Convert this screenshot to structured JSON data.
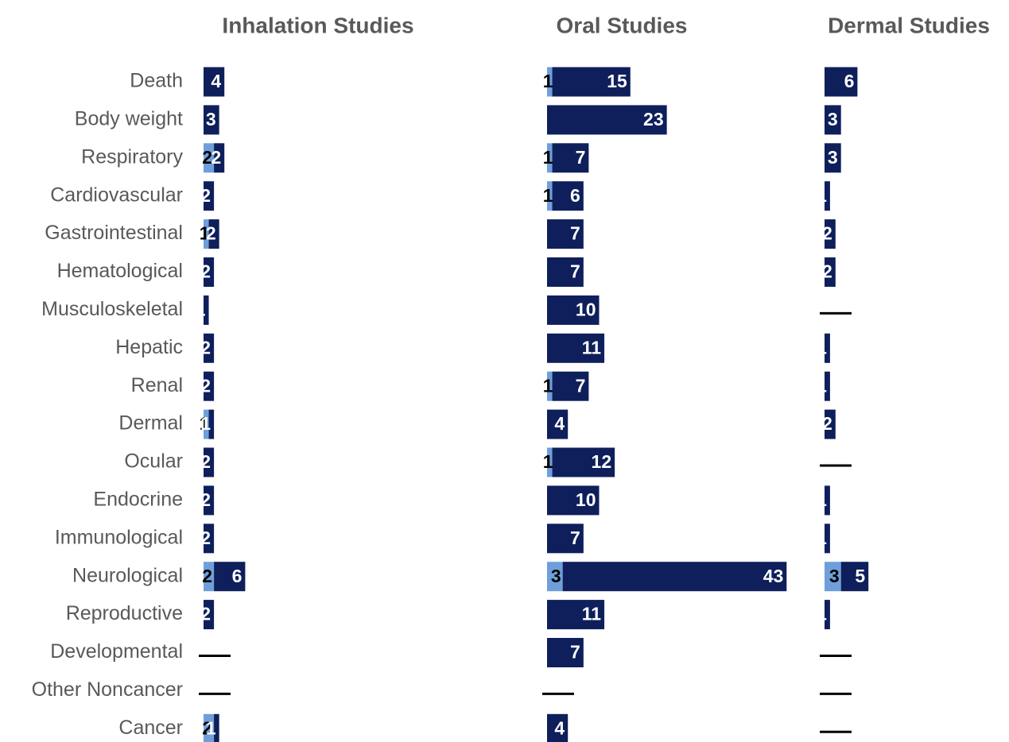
{
  "chart_data": [
    {
      "type": "bar",
      "orientation": "horizontal",
      "stacked": true,
      "title": "Inhalation Studies",
      "categories": [
        "Death",
        "Body weight",
        "Respiratory",
        "Cardiovascular",
        "Gastrointestinal",
        "Hematological",
        "Musculoskeletal",
        "Hepatic",
        "Renal",
        "Dermal",
        "Ocular",
        "Endocrine",
        "Immunological",
        "Neurological",
        "Reproductive",
        "Developmental",
        "Other Noncancer",
        "Cancer"
      ],
      "series": [
        {
          "values": [
            0,
            0,
            2,
            0,
            1,
            0,
            0,
            0,
            0,
            1,
            0,
            0,
            0,
            2,
            0,
            0,
            0,
            2
          ]
        },
        {
          "values": [
            4,
            3,
            2,
            2,
            2,
            2,
            1,
            2,
            2,
            1,
            2,
            2,
            2,
            6,
            2,
            0,
            0,
            1
          ]
        }
      ],
      "no_data_mark": "—"
    },
    {
      "type": "bar",
      "orientation": "horizontal",
      "stacked": true,
      "title": "Oral Studies",
      "categories": [
        "Death",
        "Body weight",
        "Respiratory",
        "Cardiovascular",
        "Gastrointestinal",
        "Hematological",
        "Musculoskeletal",
        "Hepatic",
        "Renal",
        "Dermal",
        "Ocular",
        "Endocrine",
        "Immunological",
        "Neurological",
        "Reproductive",
        "Developmental",
        "Other Noncancer",
        "Cancer"
      ],
      "series": [
        {
          "values": [
            1,
            0,
            1,
            1,
            0,
            0,
            0,
            0,
            1,
            0,
            1,
            0,
            0,
            3,
            0,
            0,
            0,
            0
          ]
        },
        {
          "values": [
            15,
            23,
            7,
            6,
            7,
            7,
            10,
            11,
            7,
            4,
            12,
            10,
            7,
            43,
            11,
            7,
            0,
            4
          ]
        }
      ],
      "no_data_mark": "—"
    },
    {
      "type": "bar",
      "orientation": "horizontal",
      "stacked": true,
      "title": "Dermal Studies",
      "categories": [
        "Death",
        "Body weight",
        "Respiratory",
        "Cardiovascular",
        "Gastrointestinal",
        "Hematological",
        "Musculoskeletal",
        "Hepatic",
        "Renal",
        "Dermal",
        "Ocular",
        "Endocrine",
        "Immunological",
        "Neurological",
        "Reproductive",
        "Developmental",
        "Other Noncancer",
        "Cancer"
      ],
      "series": [
        {
          "values": [
            0,
            0,
            0,
            0,
            0,
            0,
            0,
            0,
            0,
            0,
            0,
            0,
            0,
            3,
            0,
            0,
            0,
            0
          ]
        },
        {
          "values": [
            6,
            3,
            3,
            1,
            2,
            2,
            0,
            1,
            1,
            2,
            0,
            1,
            1,
            5,
            1,
            0,
            0,
            0
          ]
        }
      ],
      "no_data_mark": "—"
    }
  ],
  "colors": {
    "series_light": "#6f9fdb",
    "series_dark": "#0e1f5b",
    "title": "#595959",
    "category_text": "#595959",
    "label_on_light": "#000000",
    "label_on_dark": "#ffffff",
    "dash": "#000000"
  }
}
